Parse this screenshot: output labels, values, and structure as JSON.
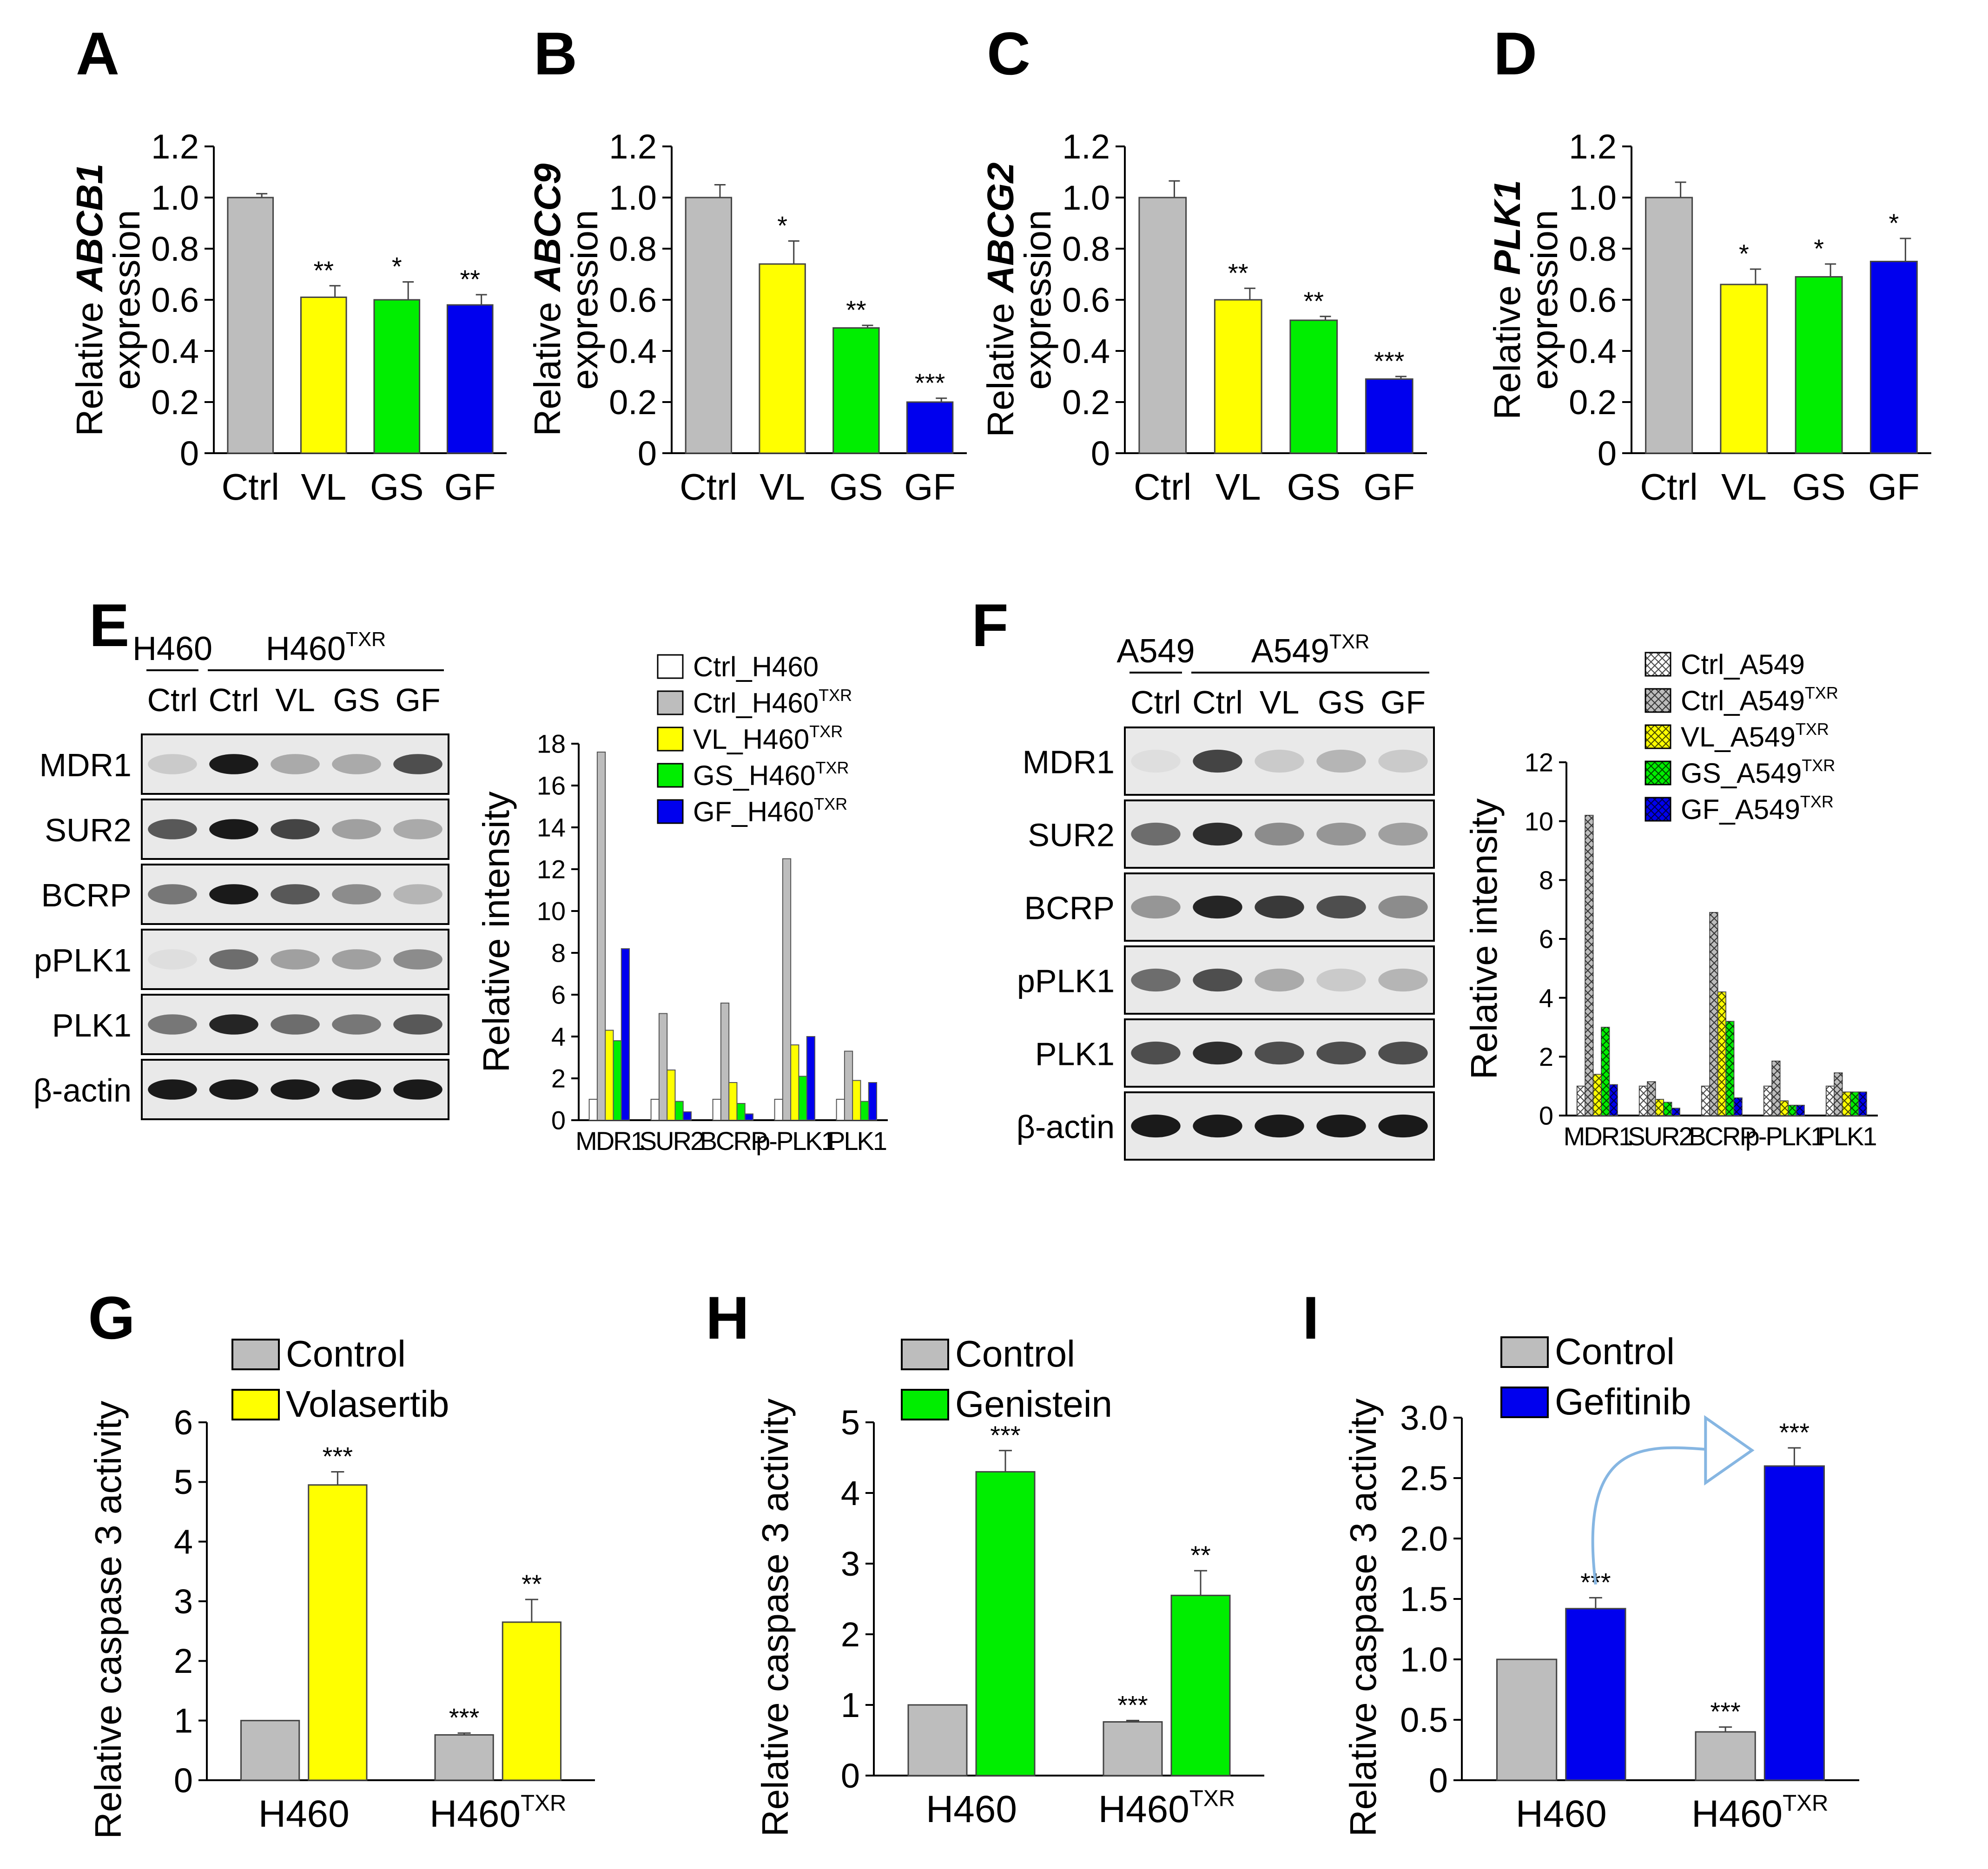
{
  "figure": {
    "colors": {
      "gray": "#bdbdbd",
      "yellow": "#ffff00",
      "green": "#00ee00",
      "blue": "#0000ee",
      "white": "#ffffff",
      "arrow": "#86b6e2",
      "axis": "#000000"
    }
  },
  "chart_data": [
    {
      "id": "A",
      "panel_label": "A",
      "type": "bar",
      "ylabel_pre": "Relative ",
      "ylabel_gene": "ABCB1",
      "ylabel_line2": "expression",
      "categories": [
        "Ctrl",
        "VL",
        "GS",
        "GF"
      ],
      "values": [
        1.0,
        0.61,
        0.6,
        0.58
      ],
      "errors": [
        0.015,
        0.045,
        0.07,
        0.04
      ],
      "sig": [
        "",
        "**",
        "*",
        "**"
      ],
      "colors": [
        "gray",
        "yellow",
        "green",
        "blue"
      ],
      "ylim": [
        0,
        1.2
      ],
      "yticks": [
        "0",
        "0.2",
        "0.4",
        "0.6",
        "0.8",
        "1.0",
        "1.2"
      ]
    },
    {
      "id": "B",
      "panel_label": "B",
      "type": "bar",
      "ylabel_pre": "Relative ",
      "ylabel_gene": "ABCC9",
      "ylabel_line2": "expression",
      "categories": [
        "Ctrl",
        "VL",
        "GS",
        "GF"
      ],
      "values": [
        1.0,
        0.74,
        0.49,
        0.2
      ],
      "errors": [
        0.05,
        0.09,
        0.01,
        0.015
      ],
      "sig": [
        "",
        "*",
        "**",
        "***"
      ],
      "colors": [
        "gray",
        "yellow",
        "green",
        "blue"
      ],
      "ylim": [
        0,
        1.2
      ],
      "yticks": [
        "0",
        "0.2",
        "0.4",
        "0.6",
        "0.8",
        "1.0",
        "1.2"
      ]
    },
    {
      "id": "C",
      "panel_label": "C",
      "type": "bar",
      "ylabel_pre": "Relative ",
      "ylabel_gene": "ABCG2",
      "ylabel_line2": "expression",
      "categories": [
        "Ctrl",
        "VL",
        "GS",
        "GF"
      ],
      "values": [
        1.0,
        0.6,
        0.52,
        0.29
      ],
      "errors": [
        0.065,
        0.045,
        0.015,
        0.01
      ],
      "sig": [
        "",
        "**",
        "**",
        "***"
      ],
      "colors": [
        "gray",
        "yellow",
        "green",
        "blue"
      ],
      "ylim": [
        0,
        1.2
      ],
      "yticks": [
        "0",
        "0.2",
        "0.4",
        "0.6",
        "0.8",
        "1.0",
        "1.2"
      ]
    },
    {
      "id": "D",
      "panel_label": "D",
      "type": "bar",
      "ylabel_pre": "Relative ",
      "ylabel_gene": "PLK1",
      "ylabel_line2": "expression",
      "categories": [
        "Ctrl",
        "VL",
        "GS",
        "GF"
      ],
      "values": [
        1.0,
        0.66,
        0.69,
        0.75
      ],
      "errors": [
        0.06,
        0.06,
        0.05,
        0.09
      ],
      "sig": [
        "",
        "*",
        "*",
        "*"
      ],
      "colors": [
        "gray",
        "yellow",
        "green",
        "blue"
      ],
      "ylim": [
        0,
        1.2
      ],
      "yticks": [
        "0",
        "0.2",
        "0.4",
        "0.6",
        "0.8",
        "1.0",
        "1.2"
      ]
    },
    {
      "id": "E",
      "panel_label": "E",
      "type": "bar",
      "ylabel": "Relative intensity",
      "categories": [
        "MDR1",
        "SUR2",
        "BCRP",
        "p-PLK1",
        "PLK1"
      ],
      "series": [
        {
          "name": "Ctrl_H460",
          "base": "Ctrl_H460",
          "sup": "",
          "color": "white",
          "values": [
            1,
            1,
            1,
            1,
            1
          ]
        },
        {
          "name": "Ctrl_H460TXR",
          "base": "Ctrl_H460",
          "sup": "TXR",
          "color": "gray",
          "values": [
            17.6,
            5.1,
            5.6,
            12.5,
            3.3
          ]
        },
        {
          "name": "VL_H460TXR",
          "base": "VL_H460",
          "sup": "TXR",
          "color": "yellow",
          "values": [
            4.3,
            2.4,
            1.8,
            3.6,
            1.9
          ]
        },
        {
          "name": "GS_H460TXR",
          "base": "GS_H460",
          "sup": "TXR",
          "color": "green",
          "values": [
            3.8,
            0.9,
            0.8,
            2.1,
            0.9
          ]
        },
        {
          "name": "GF_H460TXR",
          "base": "GF_H460",
          "sup": "TXR",
          "color": "blue",
          "values": [
            8.2,
            0.4,
            0.3,
            4.0,
            1.8
          ]
        }
      ],
      "ylim": [
        0,
        18
      ],
      "yticks": [
        "0",
        "2",
        "4",
        "6",
        "8",
        "10",
        "12",
        "14",
        "16",
        "18"
      ],
      "blot": {
        "cell_base": "H460",
        "resistant_base": "H460",
        "resistant_sup": "TXR",
        "lanes": [
          "Ctrl",
          "Ctrl",
          "VL",
          "GS",
          "GF"
        ],
        "rows": [
          "MDR1",
          "SUR2",
          "BCRP",
          "pPLK1",
          "PLK1",
          "β-actin"
        ]
      }
    },
    {
      "id": "F",
      "panel_label": "F",
      "type": "bar",
      "ylabel": "Relative intensity",
      "categories": [
        "MDR1",
        "SUR2",
        "BCRP",
        "p-PLK1",
        "PLK1"
      ],
      "series": [
        {
          "name": "Ctrl_A549",
          "base": "Ctrl_A549",
          "sup": "",
          "color": "white",
          "values": [
            1,
            1,
            1,
            1,
            1
          ]
        },
        {
          "name": "Ctrl_A549TXR",
          "base": "Ctrl_A549",
          "sup": "TXR",
          "color": "gray",
          "values": [
            10.2,
            1.15,
            6.9,
            1.85,
            1.45
          ]
        },
        {
          "name": "VL_A549TXR",
          "base": "VL_A549",
          "sup": "TXR",
          "color": "yellow",
          "values": [
            1.4,
            0.55,
            4.2,
            0.5,
            0.8
          ]
        },
        {
          "name": "GS_A549TXR",
          "base": "GS_A549",
          "sup": "TXR",
          "color": "green",
          "values": [
            3.0,
            0.45,
            3.2,
            0.35,
            0.8
          ]
        },
        {
          "name": "GF_A549TXR",
          "base": "GF_A549",
          "sup": "TXR",
          "color": "blue",
          "values": [
            1.05,
            0.25,
            0.6,
            0.35,
            0.8
          ]
        }
      ],
      "ylim": [
        0,
        12
      ],
      "yticks": [
        "0",
        "2",
        "4",
        "6",
        "8",
        "10",
        "12"
      ],
      "blot": {
        "cell_base": "A549",
        "resistant_base": "A549",
        "resistant_sup": "TXR",
        "lanes": [
          "Ctrl",
          "Ctrl",
          "VL",
          "GS",
          "GF"
        ],
        "rows": [
          "MDR1",
          "SUR2",
          "BCRP",
          "pPLK1",
          "PLK1",
          "β-actin"
        ]
      }
    },
    {
      "id": "G",
      "panel_label": "G",
      "type": "bar",
      "ylabel": "Relative caspase 3 activity",
      "groups": [
        {
          "base": "H460",
          "sup": ""
        },
        {
          "base": "H460",
          "sup": "TXR"
        }
      ],
      "legend": [
        "Control",
        "Volasertib"
      ],
      "colors": [
        "gray",
        "yellow"
      ],
      "values": [
        [
          1.0,
          4.95
        ],
        [
          0.76,
          2.65
        ]
      ],
      "errors": [
        [
          0,
          0.22
        ],
        [
          0.03,
          0.38
        ]
      ],
      "sig": [
        [
          "",
          "***"
        ],
        [
          "***",
          "**"
        ]
      ],
      "ylim": [
        0,
        6
      ],
      "yticks": [
        "0",
        "1",
        "2",
        "3",
        "4",
        "5",
        "6"
      ]
    },
    {
      "id": "H",
      "panel_label": "H",
      "type": "bar",
      "ylabel": "Relative caspase 3 activity",
      "groups": [
        {
          "base": "H460",
          "sup": ""
        },
        {
          "base": "H460",
          "sup": "TXR"
        }
      ],
      "legend": [
        "Control",
        "Genistein"
      ],
      "colors": [
        "gray",
        "green"
      ],
      "values": [
        [
          1.0,
          4.3
        ],
        [
          0.76,
          2.55
        ]
      ],
      "errors": [
        [
          0,
          0.3
        ],
        [
          0.02,
          0.35
        ]
      ],
      "sig": [
        [
          "",
          "***"
        ],
        [
          "***",
          "**"
        ]
      ],
      "ylim": [
        0,
        5
      ],
      "yticks": [
        "0",
        "1",
        "2",
        "3",
        "4",
        "5"
      ]
    },
    {
      "id": "I",
      "panel_label": "I",
      "type": "bar",
      "ylabel": "Relative caspase 3 activity",
      "groups": [
        {
          "base": "H460",
          "sup": ""
        },
        {
          "base": "H460",
          "sup": "TXR"
        }
      ],
      "legend": [
        "Control",
        "Gefitinib"
      ],
      "colors": [
        "gray",
        "blue"
      ],
      "values": [
        [
          1.0,
          1.42
        ],
        [
          0.4,
          2.6
        ]
      ],
      "errors": [
        [
          0,
          0.09
        ],
        [
          0.04,
          0.15
        ]
      ],
      "sig": [
        [
          "",
          "***"
        ],
        [
          "***",
          "***"
        ]
      ],
      "ylim": [
        0,
        3
      ],
      "yticks": [
        "0",
        "0.5",
        "1.0",
        "1.5",
        "2.0",
        "2.5",
        "3.0"
      ]
    }
  ]
}
